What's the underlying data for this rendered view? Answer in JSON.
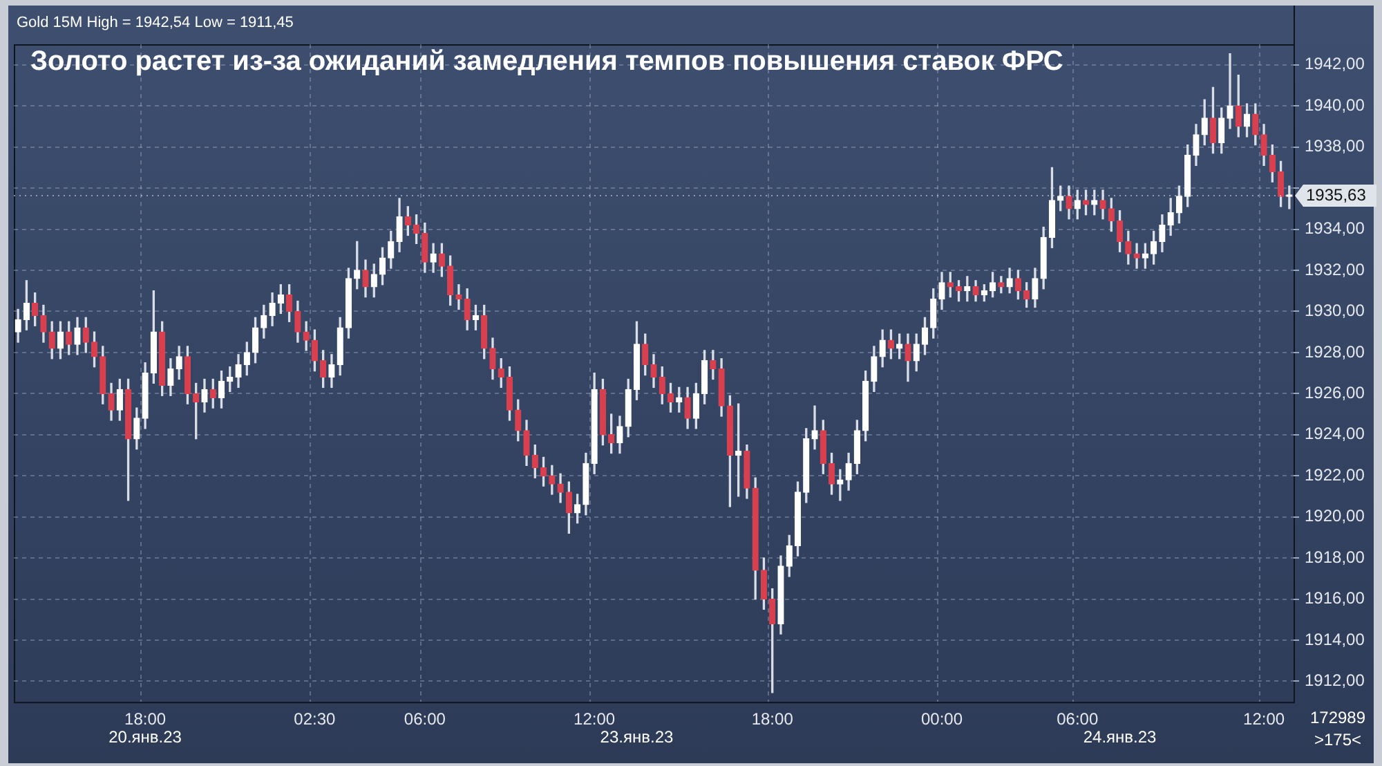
{
  "chart_data": {
    "type": "candlestick",
    "title": "Золото растет из-за ожиданий замедления темпов повышения ставок ФРС",
    "subtitle": "Gold 15M High = 1942,54 Low = 1911,45",
    "annotations": [
      "20.янв.23",
      "23.янв.23",
      "24.янв.23",
      "172989",
      ">175<"
    ],
    "categories": [
      null,
      null,
      null,
      null,
      null,
      null,
      null,
      null,
      null,
      null,
      null,
      null,
      null,
      null,
      null,
      "18:00",
      null,
      null,
      null,
      null,
      null,
      null,
      null,
      null,
      null,
      null,
      null,
      null,
      null,
      null,
      null,
      null,
      null,
      null,
      null,
      "02:30",
      null,
      null,
      null,
      null,
      null,
      null,
      null,
      null,
      null,
      null,
      null,
      null,
      "06:00",
      null,
      null,
      null,
      null,
      null,
      null,
      null,
      null,
      null,
      null,
      null,
      null,
      null,
      null,
      null,
      null,
      null,
      null,
      null,
      "12:00",
      null,
      null,
      null,
      null,
      null,
      null,
      null,
      null,
      null,
      null,
      null,
      null,
      null,
      null,
      null,
      null,
      null,
      null,
      null,
      null,
      "18:00",
      null,
      null,
      null,
      null,
      null,
      null,
      null,
      null,
      null,
      null,
      null,
      null,
      null,
      null,
      null,
      null,
      null,
      null,
      null,
      "00:00",
      null,
      null,
      null,
      null,
      null,
      null,
      null,
      null,
      null,
      null,
      null,
      null,
      null,
      null,
      null,
      "06:00",
      null,
      null,
      null,
      null,
      null,
      null,
      null,
      null,
      null,
      null,
      null,
      null,
      null,
      null,
      null,
      null,
      null,
      null,
      null,
      null,
      null,
      "12:00",
      null,
      null,
      null
    ],
    "colors": [
      "#ffffff",
      "#ffffff",
      "#d9404f",
      "#d9404f",
      "#d9404f",
      "#ffffff",
      "#d9404f",
      "#ffffff",
      "#d9404f",
      "#d9404f",
      "#d9404f",
      "#d9404f",
      "#ffffff",
      "#d9404f",
      "#ffffff",
      "#ffffff",
      "#ffffff",
      "#d9404f",
      "#ffffff",
      "#ffffff",
      "#d9404f",
      "#d9404f",
      "#ffffff",
      "#d9404f",
      "#ffffff",
      "#ffffff",
      "#ffffff",
      "#ffffff",
      "#ffffff",
      "#ffffff",
      "#ffffff",
      "#ffffff",
      "#d9404f",
      "#d9404f",
      "#d9404f",
      "#d9404f",
      "#d9404f",
      "#ffffff",
      "#ffffff",
      "#ffffff",
      "#ffffff",
      "#d9404f",
      "#ffffff",
      "#ffffff",
      "#ffffff",
      "#ffffff",
      "#d9404f",
      "#d9404f",
      "#d9404f",
      "#ffffff",
      "#d9404f",
      "#d9404f",
      "#d9404f",
      "#d9404f",
      "#ffffff",
      "#d9404f",
      "#d9404f",
      "#d9404f",
      "#d9404f",
      "#d9404f",
      "#d9404f",
      "#d9404f",
      "#d9404f",
      "#d9404f",
      "#d9404f",
      "#d9404f",
      "#ffffff",
      "#ffffff",
      "#ffffff",
      "#d9404f",
      "#d9404f",
      "#ffffff",
      "#ffffff",
      "#ffffff",
      "#d9404f",
      "#d9404f",
      "#d9404f",
      "#d9404f",
      "#ffffff",
      "#d9404f",
      "#ffffff",
      "#ffffff",
      "#d9404f",
      "#d9404f",
      "#d9404f",
      "#ffffff",
      "#d9404f",
      "#d9404f",
      "#d9404f",
      "#d9404f",
      "#ffffff",
      "#ffffff",
      "#ffffff",
      "#ffffff",
      "#ffffff",
      "#d9404f",
      "#d9404f",
      "#ffffff",
      "#ffffff",
      "#ffffff",
      "#ffffff",
      "#ffffff",
      "#ffffff",
      "#d9404f",
      "#ffffff",
      "#d9404f",
      "#ffffff",
      "#ffffff",
      "#ffffff",
      "#ffffff",
      "#d9404f",
      "#d9404f",
      "#ffffff",
      "#d9404f",
      "#ffffff",
      "#ffffff",
      "#d9404f",
      "#ffffff",
      "#d9404f",
      "#d9404f",
      "#ffffff",
      "#ffffff",
      "#ffffff",
      "#ffffff",
      "#d9404f",
      "#ffffff",
      "#d9404f",
      "#ffffff",
      "#d9404f",
      "#d9404f",
      "#d9404f",
      "#d9404f",
      "#d9404f",
      "#ffffff",
      "#ffffff",
      "#ffffff",
      "#ffffff",
      "#ffffff",
      "#ffffff",
      "#ffffff",
      "#ffffff",
      "#d9404f",
      "#ffffff",
      "#ffffff",
      "#d9404f",
      "#ffffff",
      "#d9404f",
      "#d9404f",
      "#d9404f",
      "#d9404f",
      "#ffffff"
    ],
    "ohlc": [
      [
        1929.0,
        1930.1,
        1928.5,
        1929.6
      ],
      [
        1929.6,
        1931.5,
        1929.1,
        1930.4
      ],
      [
        1930.4,
        1930.9,
        1929.3,
        1929.8
      ],
      [
        1929.8,
        1930.3,
        1928.5,
        1929.0
      ],
      [
        1929.0,
        1929.5,
        1927.7,
        1928.2
      ],
      [
        1928.2,
        1929.5,
        1927.7,
        1929.0
      ],
      [
        1929.0,
        1929.5,
        1927.9,
        1928.4
      ],
      [
        1928.4,
        1929.7,
        1927.9,
        1929.2
      ],
      [
        1929.2,
        1929.7,
        1928.0,
        1928.5
      ],
      [
        1928.5,
        1929.0,
        1927.3,
        1927.8
      ],
      [
        1927.8,
        1928.3,
        1925.5,
        1926.0
      ],
      [
        1926.0,
        1926.5,
        1924.7,
        1925.2
      ],
      [
        1925.2,
        1926.7,
        1924.7,
        1926.2
      ],
      [
        1926.2,
        1926.7,
        1920.8,
        1923.8
      ],
      [
        1923.8,
        1925.3,
        1923.3,
        1924.8
      ],
      [
        1924.8,
        1927.5,
        1924.3,
        1927.0
      ],
      [
        1927.0,
        1931.0,
        1926.5,
        1929.0
      ],
      [
        1929.0,
        1929.5,
        1925.9,
        1926.4
      ],
      [
        1926.4,
        1927.7,
        1925.9,
        1927.2
      ],
      [
        1927.2,
        1928.3,
        1926.7,
        1927.8
      ],
      [
        1927.8,
        1928.3,
        1925.5,
        1926.0
      ],
      [
        1926.0,
        1926.5,
        1923.8,
        1925.6
      ],
      [
        1925.6,
        1926.7,
        1925.1,
        1926.2
      ],
      [
        1926.2,
        1926.7,
        1925.3,
        1925.8
      ],
      [
        1925.8,
        1927.1,
        1925.3,
        1926.6
      ],
      [
        1926.6,
        1927.3,
        1926.1,
        1926.8
      ],
      [
        1926.8,
        1927.9,
        1926.3,
        1927.4
      ],
      [
        1927.4,
        1928.5,
        1926.9,
        1928.0
      ],
      [
        1928.0,
        1929.7,
        1927.5,
        1929.2
      ],
      [
        1929.2,
        1930.3,
        1928.7,
        1929.8
      ],
      [
        1929.8,
        1930.9,
        1929.3,
        1930.4
      ],
      [
        1930.4,
        1931.3,
        1929.9,
        1930.8
      ],
      [
        1930.8,
        1931.3,
        1929.5,
        1930.0
      ],
      [
        1930.0,
        1930.5,
        1928.5,
        1929.0
      ],
      [
        1929.0,
        1929.5,
        1928.1,
        1928.6
      ],
      [
        1928.6,
        1929.1,
        1927.1,
        1927.6
      ],
      [
        1927.6,
        1928.1,
        1926.3,
        1926.8
      ],
      [
        1926.8,
        1927.9,
        1926.3,
        1927.4
      ],
      [
        1927.4,
        1929.7,
        1926.9,
        1929.2
      ],
      [
        1929.2,
        1932.1,
        1928.7,
        1931.6
      ],
      [
        1931.6,
        1933.4,
        1931.1,
        1932.0
      ],
      [
        1932.0,
        1932.5,
        1930.7,
        1931.2
      ],
      [
        1931.2,
        1932.3,
        1930.7,
        1931.8
      ],
      [
        1931.8,
        1933.1,
        1931.3,
        1932.6
      ],
      [
        1932.6,
        1933.9,
        1932.1,
        1933.4
      ],
      [
        1933.4,
        1935.5,
        1932.9,
        1934.6
      ],
      [
        1934.6,
        1935.1,
        1933.7,
        1934.2
      ],
      [
        1934.2,
        1934.7,
        1933.3,
        1933.8
      ],
      [
        1933.8,
        1934.3,
        1931.9,
        1932.4
      ],
      [
        1932.4,
        1933.3,
        1931.9,
        1932.8
      ],
      [
        1932.8,
        1933.3,
        1931.7,
        1932.2
      ],
      [
        1932.2,
        1932.7,
        1930.3,
        1930.8
      ],
      [
        1930.8,
        1931.3,
        1930.1,
        1930.6
      ],
      [
        1930.6,
        1931.1,
        1929.1,
        1929.6
      ],
      [
        1929.6,
        1930.3,
        1929.1,
        1929.8
      ],
      [
        1929.8,
        1930.3,
        1927.7,
        1928.2
      ],
      [
        1928.2,
        1928.7,
        1926.7,
        1927.2
      ],
      [
        1927.2,
        1927.7,
        1926.3,
        1926.8
      ],
      [
        1926.8,
        1927.3,
        1924.7,
        1925.2
      ],
      [
        1925.2,
        1925.7,
        1923.7,
        1924.2
      ],
      [
        1924.2,
        1924.7,
        1922.5,
        1923.0
      ],
      [
        1923.0,
        1923.5,
        1921.9,
        1922.4
      ],
      [
        1922.4,
        1922.9,
        1921.5,
        1922.0
      ],
      [
        1922.0,
        1922.5,
        1921.1,
        1921.6
      ],
      [
        1921.6,
        1922.1,
        1920.7,
        1921.2
      ],
      [
        1921.2,
        1921.7,
        1919.2,
        1920.2
      ],
      [
        1920.2,
        1921.1,
        1919.7,
        1920.6
      ],
      [
        1920.6,
        1923.1,
        1920.1,
        1922.6
      ],
      [
        1922.6,
        1927.0,
        1922.1,
        1926.2
      ],
      [
        1926.2,
        1926.7,
        1923.5,
        1924.0
      ],
      [
        1924.0,
        1925.0,
        1923.1,
        1923.6
      ],
      [
        1923.6,
        1924.9,
        1923.1,
        1924.4
      ],
      [
        1924.4,
        1926.7,
        1923.9,
        1926.2
      ],
      [
        1926.2,
        1929.5,
        1925.7,
        1928.4
      ],
      [
        1928.4,
        1928.9,
        1926.9,
        1927.4
      ],
      [
        1927.4,
        1927.9,
        1926.3,
        1926.8
      ],
      [
        1926.8,
        1927.3,
        1925.5,
        1926.0
      ],
      [
        1926.0,
        1926.5,
        1925.1,
        1925.6
      ],
      [
        1925.6,
        1926.3,
        1925.1,
        1925.8
      ],
      [
        1925.8,
        1926.3,
        1924.3,
        1924.8
      ],
      [
        1924.8,
        1926.5,
        1924.3,
        1926.0
      ],
      [
        1926.0,
        1928.1,
        1925.5,
        1927.6
      ],
      [
        1927.6,
        1928.1,
        1926.7,
        1927.2
      ],
      [
        1927.2,
        1927.7,
        1924.9,
        1925.4
      ],
      [
        1925.4,
        1925.9,
        1920.5,
        1923.0
      ],
      [
        1923.0,
        1925.5,
        1921.0,
        1923.2
      ],
      [
        1923.2,
        1923.5,
        1920.9,
        1921.4
      ],
      [
        1921.4,
        1921.9,
        1916.0,
        1917.4
      ],
      [
        1917.4,
        1918.0,
        1915.5,
        1916.0
      ],
      [
        1916.0,
        1916.5,
        1911.45,
        1914.8
      ],
      [
        1914.8,
        1918.1,
        1914.3,
        1917.6
      ],
      [
        1917.6,
        1919.1,
        1917.1,
        1918.6
      ],
      [
        1918.6,
        1921.7,
        1918.1,
        1921.2
      ],
      [
        1921.2,
        1924.3,
        1920.7,
        1923.8
      ],
      [
        1923.8,
        1925.4,
        1923.3,
        1924.2
      ],
      [
        1924.2,
        1924.7,
        1922.1,
        1922.6
      ],
      [
        1922.6,
        1923.1,
        1921.1,
        1921.6
      ],
      [
        1921.6,
        1922.3,
        1920.8,
        1921.8
      ],
      [
        1921.8,
        1923.1,
        1921.3,
        1922.6
      ],
      [
        1922.6,
        1924.7,
        1922.1,
        1924.2
      ],
      [
        1924.2,
        1927.1,
        1923.7,
        1926.6
      ],
      [
        1926.6,
        1928.3,
        1926.1,
        1927.8
      ],
      [
        1927.8,
        1929.1,
        1927.3,
        1928.6
      ],
      [
        1928.6,
        1929.1,
        1927.7,
        1928.2
      ],
      [
        1928.2,
        1928.9,
        1927.7,
        1928.4
      ],
      [
        1928.4,
        1928.9,
        1926.6,
        1927.6
      ],
      [
        1927.6,
        1928.9,
        1927.1,
        1928.4
      ],
      [
        1928.4,
        1929.7,
        1927.9,
        1929.2
      ],
      [
        1929.2,
        1931.1,
        1928.7,
        1930.6
      ],
      [
        1930.6,
        1931.9,
        1930.1,
        1931.4
      ],
      [
        1931.4,
        1931.9,
        1930.7,
        1931.2
      ],
      [
        1931.2,
        1931.5,
        1930.5,
        1931.0
      ],
      [
        1931.0,
        1931.7,
        1930.5,
        1931.2
      ],
      [
        1931.2,
        1931.5,
        1930.5,
        1930.8
      ],
      [
        1930.8,
        1931.3,
        1930.5,
        1931.0
      ],
      [
        1931.0,
        1931.9,
        1930.7,
        1931.4
      ],
      [
        1931.4,
        1931.7,
        1930.9,
        1931.2
      ],
      [
        1931.2,
        1932.1,
        1930.9,
        1931.6
      ],
      [
        1931.6,
        1932.0,
        1930.6,
        1931.0
      ],
      [
        1931.0,
        1931.4,
        1930.2,
        1930.6
      ],
      [
        1930.6,
        1932.1,
        1930.2,
        1931.6
      ],
      [
        1931.6,
        1934.1,
        1931.1,
        1933.6
      ],
      [
        1933.6,
        1937.0,
        1933.1,
        1935.4
      ],
      [
        1935.4,
        1936.1,
        1934.9,
        1935.6
      ],
      [
        1935.6,
        1936.1,
        1934.5,
        1935.0
      ],
      [
        1935.0,
        1935.9,
        1934.5,
        1935.4
      ],
      [
        1935.4,
        1935.9,
        1934.7,
        1935.2
      ],
      [
        1935.2,
        1935.9,
        1934.7,
        1935.4
      ],
      [
        1935.4,
        1935.9,
        1934.5,
        1935.0
      ],
      [
        1935.0,
        1935.5,
        1933.9,
        1934.4
      ],
      [
        1934.4,
        1934.9,
        1932.9,
        1933.4
      ],
      [
        1933.4,
        1933.9,
        1932.3,
        1932.8
      ],
      [
        1932.8,
        1933.3,
        1932.1,
        1932.6
      ],
      [
        1932.6,
        1933.3,
        1932.1,
        1932.8
      ],
      [
        1932.8,
        1933.9,
        1932.3,
        1933.4
      ],
      [
        1933.4,
        1934.7,
        1932.9,
        1934.2
      ],
      [
        1934.2,
        1935.5,
        1933.7,
        1934.8
      ],
      [
        1934.8,
        1936.1,
        1934.3,
        1935.6
      ],
      [
        1935.6,
        1938.1,
        1935.1,
        1937.6
      ],
      [
        1937.6,
        1939.1,
        1937.1,
        1938.6
      ],
      [
        1938.6,
        1940.3,
        1938.1,
        1939.4
      ],
      [
        1939.4,
        1940.9,
        1937.7,
        1938.2
      ],
      [
        1938.2,
        1939.9,
        1937.7,
        1939.4
      ],
      [
        1939.4,
        1942.54,
        1938.9,
        1940.0
      ],
      [
        1940.0,
        1941.5,
        1938.5,
        1939.0
      ],
      [
        1939.0,
        1940.1,
        1938.5,
        1939.6
      ],
      [
        1939.6,
        1940.1,
        1938.1,
        1938.6
      ],
      [
        1938.6,
        1939.1,
        1937.1,
        1937.6
      ],
      [
        1937.6,
        1938.1,
        1936.3,
        1936.8
      ],
      [
        1936.8,
        1937.3,
        1935.1,
        1935.6
      ],
      [
        1935.6,
        1936.1,
        1935.0,
        1935.63
      ]
    ],
    "ylim": [
      1911,
      1943
    ],
    "yticks": [
      {
        "value": 1912,
        "label": "1912,00"
      },
      {
        "value": 1914,
        "label": "1914,00"
      },
      {
        "value": 1916,
        "label": "1916,00"
      },
      {
        "value": 1918,
        "label": "1918,00"
      },
      {
        "value": 1920,
        "label": "1920,00"
      },
      {
        "value": 1922,
        "label": "1922,00"
      },
      {
        "value": 1924,
        "label": "1924,00"
      },
      {
        "value": 1926,
        "label": "1926,00"
      },
      {
        "value": 1928,
        "label": "1928,00"
      },
      {
        "value": 1930,
        "label": "1930,00"
      },
      {
        "value": 1932,
        "label": "1932,00"
      },
      {
        "value": 1934,
        "label": "1934,00"
      },
      {
        "value": 1936,
        "label": null
      },
      {
        "value": 1938,
        "label": "1938,00"
      },
      {
        "value": 1940,
        "label": "1940,00"
      },
      {
        "value": 1942,
        "label": "1942,00"
      }
    ],
    "ref_lines": [
      {
        "axis": "y",
        "value": 1935.63,
        "label": "1935,63"
      }
    ],
    "grid": true,
    "legend": false
  }
}
